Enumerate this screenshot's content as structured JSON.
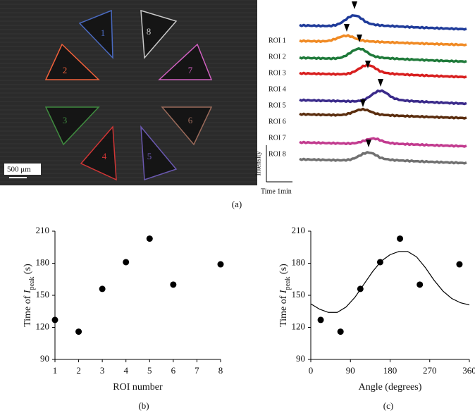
{
  "panel_a": {
    "label": "(a)",
    "triangle_labels": [
      "1",
      "2",
      "3",
      "4",
      "5",
      "6",
      "7",
      "8"
    ],
    "trace_labels": [
      "ROI 1",
      "ROI 2",
      "ROI 3",
      "ROI 4",
      "ROI 5",
      "ROI 6",
      "ROI 7",
      "ROI 8"
    ],
    "scale_bar": "500 μm",
    "y_scale": "Intensity",
    "x_scale": "Time 1min"
  },
  "chart_data": [
    {
      "type": "scatter",
      "panel_label": "(b)",
      "xlabel": "ROI number",
      "ylabel": {
        "text": "Time of ",
        "symbol": "I",
        "subscript": "peak",
        "unit": " (s)"
      },
      "x": [
        1,
        2,
        3,
        4,
        5,
        6,
        8
      ],
      "values": [
        127,
        116,
        156,
        181,
        203,
        160,
        179
      ],
      "color": "#000000",
      "xlim": [
        1,
        8
      ],
      "xticks": [
        1,
        2,
        3,
        4,
        5,
        6,
        7,
        8
      ],
      "ylim": [
        90,
        210
      ],
      "yticks": [
        90,
        120,
        150,
        180,
        210
      ]
    },
    {
      "type": "scatter",
      "panel_label": "(c)",
      "xlabel": "Angle (degrees)",
      "ylabel": {
        "text": "Time of ",
        "symbol": "I",
        "subscript": "peak",
        "unit": " (s)"
      },
      "x": [
        22.5,
        67.5,
        112.5,
        157.5,
        202.5,
        247.5,
        337.5
      ],
      "values": [
        127,
        116,
        156,
        181,
        203,
        160,
        179
      ],
      "color": "#000000",
      "fit_x": [
        0,
        20,
        40,
        60,
        80,
        100,
        120,
        140,
        160,
        180,
        200,
        220,
        240,
        260,
        280,
        300,
        320,
        340,
        360
      ],
      "fit_values": [
        142,
        137,
        134,
        134,
        139,
        148,
        160,
        172,
        182,
        188,
        191,
        191,
        186,
        176,
        164,
        154,
        147,
        143,
        141
      ],
      "xlim": [
        0,
        360
      ],
      "xticks": [
        0,
        90,
        180,
        270,
        360
      ],
      "ylim": [
        90,
        210
      ],
      "yticks": [
        90,
        120,
        150,
        180,
        210
      ]
    }
  ]
}
